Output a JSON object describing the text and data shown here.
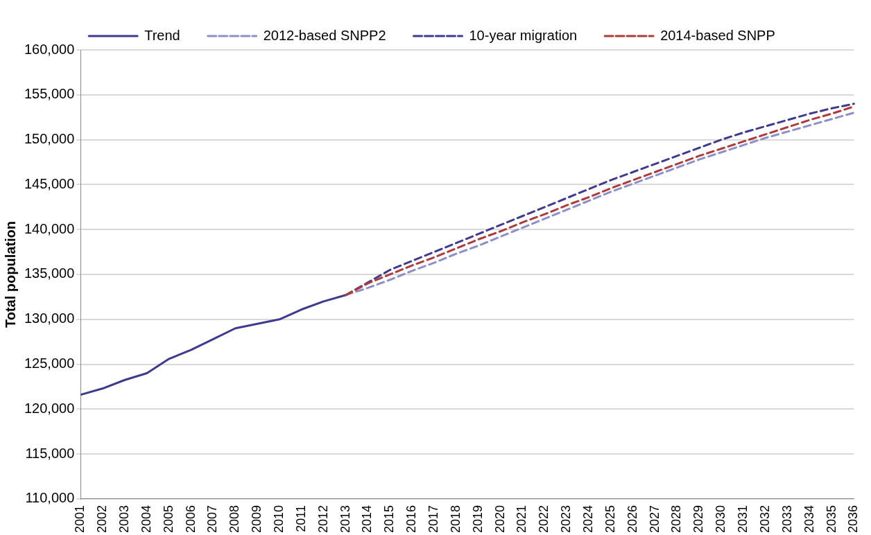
{
  "chart_data": {
    "type": "line",
    "ylabel": "Total population",
    "categories": [
      "2001",
      "2002",
      "2003",
      "2004",
      "2005",
      "2006",
      "2007",
      "2008",
      "2009",
      "2010",
      "2011",
      "2012",
      "2013",
      "2014",
      "2015",
      "2016",
      "2017",
      "2018",
      "2019",
      "2020",
      "2021",
      "2022",
      "2023",
      "2024",
      "2025",
      "2026",
      "2027",
      "2028",
      "2029",
      "2030",
      "2031",
      "2032",
      "2033",
      "2034",
      "2035",
      "2036"
    ],
    "series": [
      {
        "name": "Trend",
        "color": "#3d3a8f",
        "line_style": "solid",
        "values": [
          121600,
          122300,
          123250,
          124000,
          125600,
          126600,
          127800,
          129000,
          129500,
          130000,
          131100,
          132000,
          132700,
          null,
          null,
          null,
          null,
          null,
          null,
          null,
          null,
          null,
          null,
          null,
          null,
          null,
          null,
          null,
          null,
          null,
          null,
          null,
          null,
          null,
          null,
          null
        ]
      },
      {
        "name": "2012-based SNPP2",
        "color": "#8c8fcc",
        "line_style": "dashed",
        "values": [
          null,
          null,
          null,
          null,
          null,
          null,
          null,
          null,
          null,
          null,
          null,
          null,
          132700,
          133500,
          134400,
          135400,
          136300,
          137300,
          138200,
          139200,
          140200,
          141200,
          142200,
          143200,
          144200,
          145100,
          146000,
          146900,
          147800,
          148600,
          149400,
          150200,
          150900,
          151600,
          152300,
          153000
        ]
      },
      {
        "name": "10-year migration",
        "color": "#3d3a8f",
        "line_style": "dashed",
        "values": [
          null,
          null,
          null,
          null,
          null,
          null,
          null,
          null,
          null,
          null,
          null,
          null,
          132700,
          134100,
          135500,
          136500,
          137500,
          138500,
          139500,
          140500,
          141500,
          142500,
          143500,
          144500,
          145500,
          146400,
          147300,
          148200,
          149100,
          150000,
          150800,
          151500,
          152200,
          152900,
          153500,
          154000
        ]
      },
      {
        "name": "2014-based SNPP",
        "color": "#b03a3a",
        "line_style": "dashed",
        "values": [
          null,
          null,
          null,
          null,
          null,
          null,
          null,
          null,
          null,
          null,
          null,
          null,
          132700,
          134000,
          135000,
          136000,
          136900,
          137900,
          138900,
          139800,
          140800,
          141700,
          142700,
          143600,
          144600,
          145500,
          146400,
          147300,
          148200,
          149000,
          149800,
          150600,
          151400,
          152200,
          152900,
          153700
        ]
      }
    ],
    "ylim": [
      110000,
      160000
    ],
    "yticks": [
      {
        "value": 110000,
        "label": "110,000"
      },
      {
        "value": 115000,
        "label": "115,000"
      },
      {
        "value": 120000,
        "label": "120,000"
      },
      {
        "value": 125000,
        "label": "125,000"
      },
      {
        "value": 130000,
        "label": "130,000"
      },
      {
        "value": 135000,
        "label": "135,000"
      },
      {
        "value": 140000,
        "label": "140,000"
      },
      {
        "value": 145000,
        "label": "145,000"
      },
      {
        "value": 150000,
        "label": "150,000"
      },
      {
        "value": 155000,
        "label": "155,000"
      },
      {
        "value": 160000,
        "label": "160,000"
      }
    ],
    "grid": "y",
    "legend": "top",
    "marker": "none"
  }
}
